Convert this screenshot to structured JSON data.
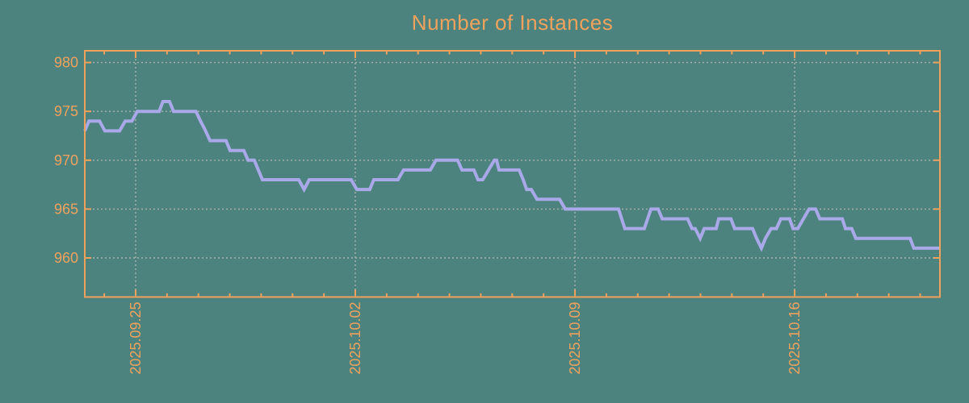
{
  "figure": {
    "background_color": "#4d837f",
    "accent_color": "#f0a25c",
    "line_color": "#a9a9e9",
    "grid_color": "#a8b2ac"
  },
  "chart_data": {
    "type": "line",
    "title": "Number of Instances",
    "xlabel": "",
    "ylabel": "",
    "legend": "none",
    "grid": "dashed, at major ticks",
    "x_unit": "days relative to 2025.09.25",
    "x_axis": {
      "domain": [
        -1.62,
        25.63
      ],
      "major_ticks": [
        {
          "label": "2025.09.25",
          "day": 0
        },
        {
          "label": "2025.10.02",
          "day": 7
        },
        {
          "label": "2025.10.09",
          "day": 14
        },
        {
          "label": "2025.10.16",
          "day": 21
        }
      ],
      "minor_tick_interval_days": 1,
      "label_rotation_deg": -90
    },
    "y_axis": {
      "domain": [
        956,
        981.2
      ],
      "ticks": [
        960,
        965,
        970,
        975,
        980
      ]
    },
    "series": [
      {
        "name": "instances",
        "points": [
          [
            -1.62,
            973
          ],
          [
            -1.49,
            974
          ],
          [
            -1.15,
            974
          ],
          [
            -0.98,
            973
          ],
          [
            -0.51,
            973
          ],
          [
            -0.33,
            974
          ],
          [
            -0.12,
            974
          ],
          [
            0.05,
            975
          ],
          [
            0.75,
            975
          ],
          [
            0.87,
            976
          ],
          [
            1.08,
            976
          ],
          [
            1.21,
            975
          ],
          [
            1.92,
            975
          ],
          [
            2.07,
            974
          ],
          [
            2.23,
            973
          ],
          [
            2.37,
            972
          ],
          [
            2.88,
            972
          ],
          [
            3.01,
            971
          ],
          [
            3.45,
            971
          ],
          [
            3.58,
            970
          ],
          [
            3.78,
            970
          ],
          [
            3.91,
            969
          ],
          [
            4.04,
            968
          ],
          [
            5.2,
            968
          ],
          [
            5.37,
            967
          ],
          [
            5.53,
            968
          ],
          [
            6.87,
            968
          ],
          [
            7.05,
            967
          ],
          [
            7.46,
            967
          ],
          [
            7.59,
            968
          ],
          [
            8.36,
            968
          ],
          [
            8.54,
            969
          ],
          [
            9.39,
            969
          ],
          [
            9.57,
            970
          ],
          [
            10.26,
            970
          ],
          [
            10.4,
            969
          ],
          [
            10.78,
            969
          ],
          [
            10.91,
            968
          ],
          [
            11.06,
            968
          ],
          [
            11.43,
            970
          ],
          [
            11.5,
            970
          ],
          [
            11.58,
            969
          ],
          [
            12.22,
            969
          ],
          [
            12.35,
            968
          ],
          [
            12.46,
            967
          ],
          [
            12.61,
            967
          ],
          [
            12.79,
            966
          ],
          [
            13.51,
            966
          ],
          [
            13.69,
            965
          ],
          [
            15.39,
            965
          ],
          [
            15.49,
            964
          ],
          [
            15.59,
            963
          ],
          [
            16.21,
            963
          ],
          [
            16.42,
            965
          ],
          [
            16.65,
            965
          ],
          [
            16.78,
            964
          ],
          [
            17.59,
            964
          ],
          [
            17.73,
            963
          ],
          [
            17.83,
            963
          ],
          [
            17.99,
            962
          ],
          [
            18.12,
            963
          ],
          [
            18.5,
            963
          ],
          [
            18.58,
            964
          ],
          [
            18.97,
            964
          ],
          [
            19.09,
            963
          ],
          [
            19.66,
            963
          ],
          [
            19.79,
            962
          ],
          [
            19.94,
            961
          ],
          [
            20.07,
            962
          ],
          [
            20.25,
            963
          ],
          [
            20.42,
            963
          ],
          [
            20.56,
            964
          ],
          [
            20.84,
            964
          ],
          [
            20.95,
            963
          ],
          [
            21.1,
            963
          ],
          [
            21.46,
            965
          ],
          [
            21.67,
            965
          ],
          [
            21.8,
            964
          ],
          [
            22.52,
            964
          ],
          [
            22.62,
            963
          ],
          [
            22.82,
            963
          ],
          [
            22.95,
            962
          ],
          [
            24.68,
            962
          ],
          [
            24.8,
            961
          ],
          [
            25.63,
            961
          ]
        ]
      }
    ]
  }
}
